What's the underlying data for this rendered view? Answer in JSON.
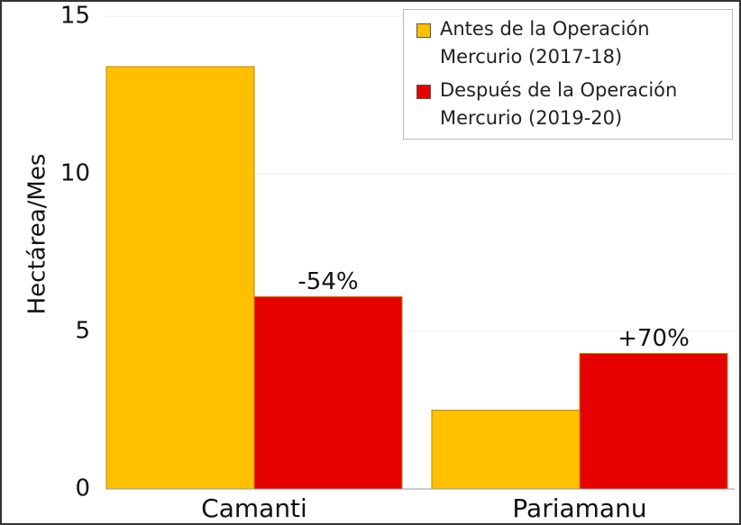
{
  "chart_data": {
    "type": "bar",
    "y_label": "Hectárea/Mes",
    "categories": [
      "Camanti",
      "Pariamanu"
    ],
    "series": [
      {
        "name": "Antes de la Operación Mercurio (2017-18)",
        "color": "#ffc000",
        "values": [
          13.4,
          2.5
        ]
      },
      {
        "name": "Después de la Operación Mercurio (2019-20)",
        "color": "#e60000",
        "values": [
          6.1,
          4.3
        ],
        "change_labels": [
          "-54%",
          "+70%"
        ]
      }
    ],
    "ylim": [
      0,
      15
    ],
    "yticks": [
      0,
      5,
      10,
      15
    ],
    "grid": true,
    "legend": "upper right"
  }
}
